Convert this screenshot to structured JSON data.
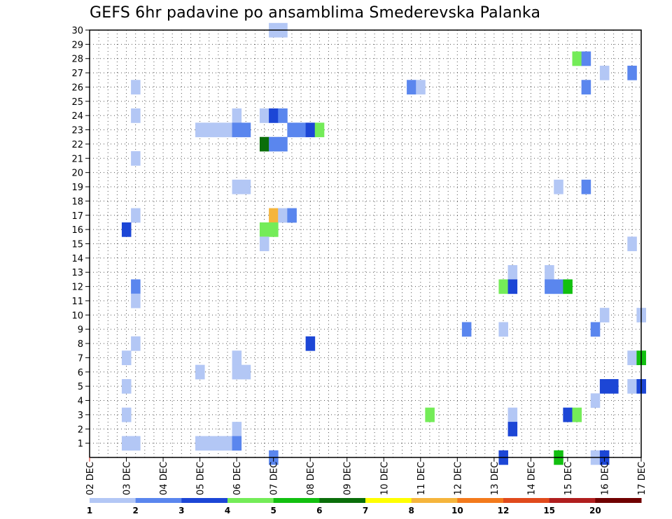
{
  "chart_data": {
    "type": "heatmap",
    "title": "GEFS 6hr padavine po ansamblima Smederevska Palanka",
    "xlabel": "",
    "ylabel": "",
    "x_tick_labels": [
      "02 DEC",
      "03 DEC",
      "04 DEC",
      "05 DEC",
      "06 DEC",
      "07 DEC",
      "08 DEC",
      "09 DEC",
      "10 DEC",
      "11 DEC",
      "12 DEC",
      "13 DEC",
      "14 DEC",
      "15 DEC",
      "16 DEC",
      "17 DEC"
    ],
    "y_tick_labels": [
      "1",
      "2",
      "3",
      "4",
      "5",
      "6",
      "7",
      "8",
      "9",
      "10",
      "11",
      "12",
      "13",
      "14",
      "15",
      "16",
      "17",
      "18",
      "19",
      "20",
      "21",
      "22",
      "23",
      "24",
      "25",
      "26",
      "27",
      "28",
      "29",
      "30"
    ],
    "xlim": [
      0,
      60
    ],
    "ylim": [
      0,
      30
    ],
    "grid": true,
    "legend_levels": [
      "1",
      "2",
      "3",
      "4",
      "5",
      "6",
      "7",
      "8",
      "10",
      "12",
      "15",
      "20"
    ],
    "legend_colors": [
      "#b3c7f5",
      "#5a86ee",
      "#1c46d6",
      "#74ec58",
      "#12c010",
      "#0a6e0a",
      "#ffff00",
      "#f5b53c",
      "#f37a1c",
      "#e04a1c",
      "#b01e1e",
      "#700000"
    ],
    "cells": [
      {
        "t": 20,
        "m": 30,
        "c": 0
      },
      {
        "t": 21,
        "m": 30,
        "c": 0
      },
      {
        "t": 53,
        "m": 28,
        "c": 3
      },
      {
        "t": 54,
        "m": 28,
        "c": 1
      },
      {
        "t": 56,
        "m": 27,
        "c": 0
      },
      {
        "t": 59,
        "m": 27,
        "c": 1
      },
      {
        "t": 5,
        "m": 26,
        "c": 0
      },
      {
        "t": 35,
        "m": 26,
        "c": 1
      },
      {
        "t": 36,
        "m": 26,
        "c": 0
      },
      {
        "t": 54,
        "m": 26,
        "c": 1
      },
      {
        "t": 5,
        "m": 24,
        "c": 0
      },
      {
        "t": 16,
        "m": 24,
        "c": 0
      },
      {
        "t": 19,
        "m": 24,
        "c": 0
      },
      {
        "t": 20,
        "m": 24,
        "c": 2
      },
      {
        "t": 21,
        "m": 24,
        "c": 1
      },
      {
        "t": 12,
        "m": 23,
        "c": 0
      },
      {
        "t": 13,
        "m": 23,
        "c": 0
      },
      {
        "t": 14,
        "m": 23,
        "c": 0
      },
      {
        "t": 15,
        "m": 23,
        "c": 0
      },
      {
        "t": 16,
        "m": 23,
        "c": 1
      },
      {
        "t": 17,
        "m": 23,
        "c": 1
      },
      {
        "t": 22,
        "m": 23,
        "c": 1
      },
      {
        "t": 23,
        "m": 23,
        "c": 1
      },
      {
        "t": 24,
        "m": 23,
        "c": 2
      },
      {
        "t": 25,
        "m": 23,
        "c": 3
      },
      {
        "t": 19,
        "m": 22,
        "c": 5
      },
      {
        "t": 20,
        "m": 22,
        "c": 1
      },
      {
        "t": 21,
        "m": 22,
        "c": 1
      },
      {
        "t": 5,
        "m": 21,
        "c": 0
      },
      {
        "t": 16,
        "m": 19,
        "c": 0
      },
      {
        "t": 17,
        "m": 19,
        "c": 0
      },
      {
        "t": 51,
        "m": 19,
        "c": 0
      },
      {
        "t": 54,
        "m": 19,
        "c": 1
      },
      {
        "t": 5,
        "m": 17,
        "c": 0
      },
      {
        "t": 20,
        "m": 17,
        "c": 7
      },
      {
        "t": 21,
        "m": 17,
        "c": 0
      },
      {
        "t": 22,
        "m": 17,
        "c": 1
      },
      {
        "t": 4,
        "m": 16,
        "c": 2
      },
      {
        "t": 19,
        "m": 16,
        "c": 3
      },
      {
        "t": 20,
        "m": 16,
        "c": 3
      },
      {
        "t": 19,
        "m": 15,
        "c": 0
      },
      {
        "t": 59,
        "m": 15,
        "c": 0
      },
      {
        "t": 46,
        "m": 13,
        "c": 0
      },
      {
        "t": 50,
        "m": 13,
        "c": 0
      },
      {
        "t": 5,
        "m": 12,
        "c": 1
      },
      {
        "t": 45,
        "m": 12,
        "c": 3
      },
      {
        "t": 46,
        "m": 12,
        "c": 2
      },
      {
        "t": 50,
        "m": 12,
        "c": 1
      },
      {
        "t": 51,
        "m": 12,
        "c": 1
      },
      {
        "t": 52,
        "m": 12,
        "c": 4
      },
      {
        "t": 5,
        "m": 11,
        "c": 0
      },
      {
        "t": 56,
        "m": 10,
        "c": 0
      },
      {
        "t": 60,
        "m": 10,
        "c": 0
      },
      {
        "t": 41,
        "m": 9,
        "c": 1
      },
      {
        "t": 45,
        "m": 9,
        "c": 0
      },
      {
        "t": 55,
        "m": 9,
        "c": 1
      },
      {
        "t": 5,
        "m": 8,
        "c": 0
      },
      {
        "t": 24,
        "m": 8,
        "c": 2
      },
      {
        "t": 4,
        "m": 7,
        "c": 0
      },
      {
        "t": 16,
        "m": 7,
        "c": 0
      },
      {
        "t": 59,
        "m": 7,
        "c": 0
      },
      {
        "t": 60,
        "m": 7,
        "c": 4
      },
      {
        "t": 12,
        "m": 6,
        "c": 0
      },
      {
        "t": 16,
        "m": 6,
        "c": 0
      },
      {
        "t": 17,
        "m": 6,
        "c": 0
      },
      {
        "t": 4,
        "m": 5,
        "c": 0
      },
      {
        "t": 56,
        "m": 5,
        "c": 2
      },
      {
        "t": 57,
        "m": 5,
        "c": 2
      },
      {
        "t": 59,
        "m": 5,
        "c": 0
      },
      {
        "t": 60,
        "m": 5,
        "c": 2
      },
      {
        "t": 55,
        "m": 4,
        "c": 0
      },
      {
        "t": 4,
        "m": 3,
        "c": 0
      },
      {
        "t": 37,
        "m": 3,
        "c": 3
      },
      {
        "t": 46,
        "m": 3,
        "c": 0
      },
      {
        "t": 52,
        "m": 3,
        "c": 2
      },
      {
        "t": 53,
        "m": 3,
        "c": 3
      },
      {
        "t": 16,
        "m": 2,
        "c": 0
      },
      {
        "t": 46,
        "m": 2,
        "c": 2
      },
      {
        "t": 4,
        "m": 1,
        "c": 0
      },
      {
        "t": 5,
        "m": 1,
        "c": 0
      },
      {
        "t": 12,
        "m": 1,
        "c": 0
      },
      {
        "t": 13,
        "m": 1,
        "c": 0
      },
      {
        "t": 14,
        "m": 1,
        "c": 0
      },
      {
        "t": 15,
        "m": 1,
        "c": 0
      },
      {
        "t": 16,
        "m": 1,
        "c": 1
      },
      {
        "t": 20,
        "m": 0,
        "c": 1
      },
      {
        "t": 45,
        "m": 0,
        "c": 2
      },
      {
        "t": 51,
        "m": 0,
        "c": 4
      },
      {
        "t": 55,
        "m": 0,
        "c": 0
      },
      {
        "t": 56,
        "m": 0,
        "c": 2
      }
    ]
  }
}
